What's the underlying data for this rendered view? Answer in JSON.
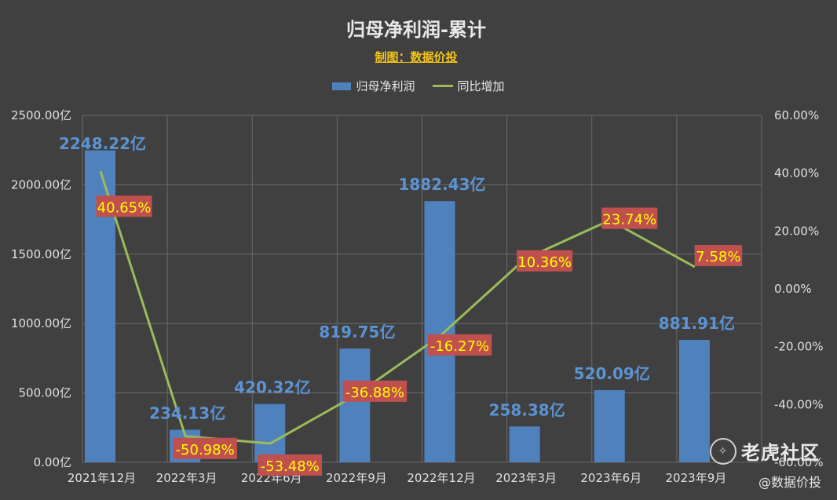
{
  "chart_data": {
    "type": "bar",
    "title": "归母净利润-累计",
    "subtitle": "制图：数据价投",
    "categories": [
      "2021年12月",
      "2022年3月",
      "2022年6月",
      "2022年9月",
      "2022年12月",
      "2023年3月",
      "2023年6月",
      "2023年9月"
    ],
    "series": [
      {
        "name": "归母净利润",
        "type": "bar",
        "axis": "left",
        "color": "#4f81bd",
        "values": [
          2248.22,
          234.13,
          420.32,
          819.75,
          1882.43,
          258.38,
          520.09,
          881.91
        ],
        "labels": [
          "2248.22亿",
          "234.13亿",
          "420.32亿",
          "819.75亿",
          "1882.43亿",
          "258.38亿",
          "520.09亿",
          "881.91亿"
        ]
      },
      {
        "name": "同比增加",
        "type": "line",
        "axis": "right",
        "color": "#9bbb59",
        "values": [
          40.65,
          -50.98,
          -53.48,
          -36.88,
          -16.27,
          10.36,
          23.74,
          7.58
        ],
        "labels": [
          "40.65%",
          "-50.98%",
          "-53.48%",
          "-36.88%",
          "-16.27%",
          "10.36%",
          "23.74%",
          "7.58%"
        ]
      }
    ],
    "y_left": {
      "range": [
        0,
        2500
      ],
      "ticks": [
        0,
        500,
        1000,
        1500,
        2000,
        2500
      ],
      "tick_labels": [
        "0.00亿",
        "500.00亿",
        "1000.00亿",
        "1500.00亿",
        "2000.00亿",
        "2500.00亿"
      ]
    },
    "y_right": {
      "range": [
        -60,
        60
      ],
      "ticks": [
        -60,
        -40,
        -20,
        0,
        20,
        40,
        60
      ],
      "tick_labels": [
        "-60.00%",
        "-40.00%",
        "-20.00%",
        "0.00%",
        "20.00%",
        "40.00%",
        "60.00%"
      ]
    },
    "grid": true,
    "legend_position": "top"
  },
  "watermark": {
    "brand": "老虎社区",
    "author": "@数据价投"
  }
}
